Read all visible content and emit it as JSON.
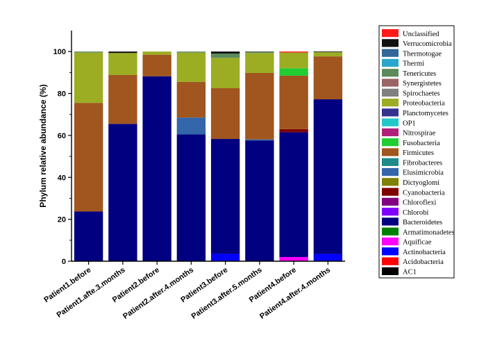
{
  "chart_data": {
    "type": "bar",
    "stacked": true,
    "ylabel": "Phylum relative abundance (%)",
    "xlabel": "",
    "ylim": [
      0,
      110
    ],
    "yticks": [
      0,
      20,
      40,
      60,
      80,
      100
    ],
    "categories": [
      "Patient1.before",
      "Patient1.afte.3.months",
      "Patient2.before",
      "Patient2.after.4.months",
      "Patient3.before",
      "Patient3.after.5.months",
      "Patient4.before",
      "Patient4.after.4.months"
    ],
    "legend_position": "right",
    "series": [
      {
        "name": "AC1",
        "color": "#000000",
        "values": [
          0,
          0,
          0,
          0,
          0,
          0,
          0,
          0
        ]
      },
      {
        "name": "Acidobacteria",
        "color": "#ff0000",
        "values": [
          0,
          0,
          0,
          0,
          0,
          0,
          0,
          0
        ]
      },
      {
        "name": "Actinobacteria",
        "color": "#0000ff",
        "values": [
          0,
          0,
          0,
          0,
          3.5,
          0,
          0,
          3.5
        ]
      },
      {
        "name": "Aquificae",
        "color": "#ff00ff",
        "values": [
          0,
          0,
          0,
          0,
          0,
          0,
          2,
          0
        ]
      },
      {
        "name": "Armatimonadetes",
        "color": "#008000",
        "values": [
          0,
          0,
          0,
          0,
          0,
          0,
          0,
          0
        ]
      },
      {
        "name": "Bacteroidetes",
        "color": "#000080",
        "values": [
          23.7,
          65.5,
          88.2,
          60.5,
          54.8,
          57.6,
          59.5,
          73.7
        ]
      },
      {
        "name": "Chlorobi",
        "color": "#8000ff",
        "values": [
          0,
          0,
          0,
          0,
          0,
          0,
          0,
          0
        ]
      },
      {
        "name": "Chloroflexi",
        "color": "#800080",
        "values": [
          0,
          0,
          0,
          0,
          0,
          0,
          0,
          0
        ]
      },
      {
        "name": "Cyanobacteria",
        "color": "#800000",
        "values": [
          0,
          0,
          0,
          0,
          0,
          0,
          1.5,
          0
        ]
      },
      {
        "name": "Dictyoglomi",
        "color": "#808000",
        "values": [
          0,
          0,
          0,
          0,
          0,
          0,
          0,
          0
        ]
      },
      {
        "name": "Elusimicrobia",
        "color": "#3366aa",
        "values": [
          0,
          0,
          0,
          8,
          0,
          0.5,
          0,
          0
        ]
      },
      {
        "name": "Fibrobacteres",
        "color": "#1f8a8a",
        "values": [
          0,
          0,
          0,
          0,
          0,
          0,
          0,
          0
        ]
      },
      {
        "name": "Firmicutes",
        "color": "#a0561e",
        "values": [
          51.8,
          23.3,
          10.3,
          17,
          24.2,
          31.7,
          25.5,
          20.5
        ]
      },
      {
        "name": "Fusobacteria",
        "color": "#22cc33",
        "values": [
          0,
          0,
          0,
          0,
          0,
          0,
          3.5,
          0
        ]
      },
      {
        "name": "Nitrospirae",
        "color": "#b0207a",
        "values": [
          0,
          0,
          0,
          0,
          0,
          0,
          0,
          0
        ]
      },
      {
        "name": "OP1",
        "color": "#22c8c8",
        "values": [
          0,
          0,
          0,
          0,
          0,
          0,
          0,
          0
        ]
      },
      {
        "name": "Planctomycetes",
        "color": "#33338f",
        "values": [
          0,
          0,
          0,
          0,
          0,
          0,
          0,
          0
        ]
      },
      {
        "name": "Proteobacteria",
        "color": "#9cad24",
        "values": [
          24,
          10.5,
          1.5,
          14,
          14.5,
          9.5,
          7.5,
          2
        ]
      },
      {
        "name": "Spirochaetes",
        "color": "#808080",
        "values": [
          0,
          0,
          0,
          0,
          0,
          0,
          0,
          0
        ]
      },
      {
        "name": "Synergistetes",
        "color": "#9a6464",
        "values": [
          0,
          0,
          0,
          0,
          0,
          0,
          0,
          0
        ]
      },
      {
        "name": "Tenericutes",
        "color": "#5c8a5c",
        "values": [
          0.5,
          0,
          0,
          0.5,
          2,
          0.5,
          0,
          0
        ]
      },
      {
        "name": "Thermi",
        "color": "#2aa6cc",
        "values": [
          0,
          0,
          0,
          0,
          0,
          0,
          0,
          0
        ]
      },
      {
        "name": "Thermotogae",
        "color": "#336699",
        "values": [
          0,
          0,
          0,
          0,
          0,
          0,
          0,
          0
        ]
      },
      {
        "name": "Verrucomicrobia",
        "color": "#111111",
        "values": [
          0,
          0.7,
          0,
          0,
          1,
          0.2,
          0,
          0.3
        ]
      },
      {
        "name": "Unclassified",
        "color": "#ff1a1a",
        "values": [
          0,
          0,
          0,
          0,
          0,
          0,
          0.5,
          0
        ]
      }
    ]
  }
}
